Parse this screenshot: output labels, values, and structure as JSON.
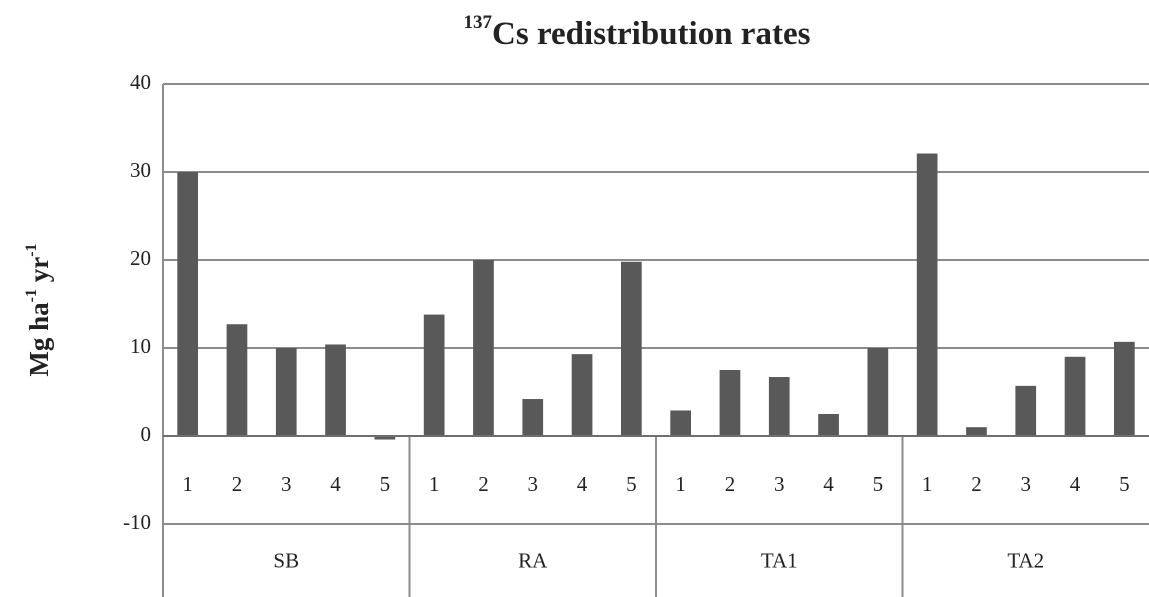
{
  "chart_data": {
    "type": "bar",
    "title": [
      {
        "text": "137",
        "sup": true
      },
      {
        "text": "Cs redistribution rates"
      }
    ],
    "y_label": [
      {
        "text": "Mg ha"
      },
      {
        "text": "-1",
        "sup": true
      },
      {
        "text": " yr"
      },
      {
        "text": "-1",
        "sup": true
      }
    ],
    "groups": [
      {
        "name": "SB",
        "categories": [
          "1",
          "2",
          "3",
          "4",
          "5"
        ]
      },
      {
        "name": "RA",
        "categories": [
          "1",
          "2",
          "3",
          "4",
          "5"
        ]
      },
      {
        "name": "TA1",
        "categories": [
          "1",
          "2",
          "3",
          "4",
          "5"
        ]
      },
      {
        "name": "TA2",
        "categories": [
          "1",
          "2",
          "3",
          "4",
          "5"
        ]
      }
    ],
    "values": [
      30,
      12.7,
      10,
      10.4,
      -0.4,
      13.8,
      20,
      4.2,
      9.3,
      19.8,
      2.9,
      7.5,
      6.7,
      2.5,
      10,
      32.1,
      1.0,
      5.7,
      9.0,
      10.7
    ],
    "color": "#595959",
    "ylim": [
      -10,
      40
    ],
    "yticks": [
      -10,
      0,
      10,
      20,
      30,
      40
    ],
    "grid": true
  }
}
